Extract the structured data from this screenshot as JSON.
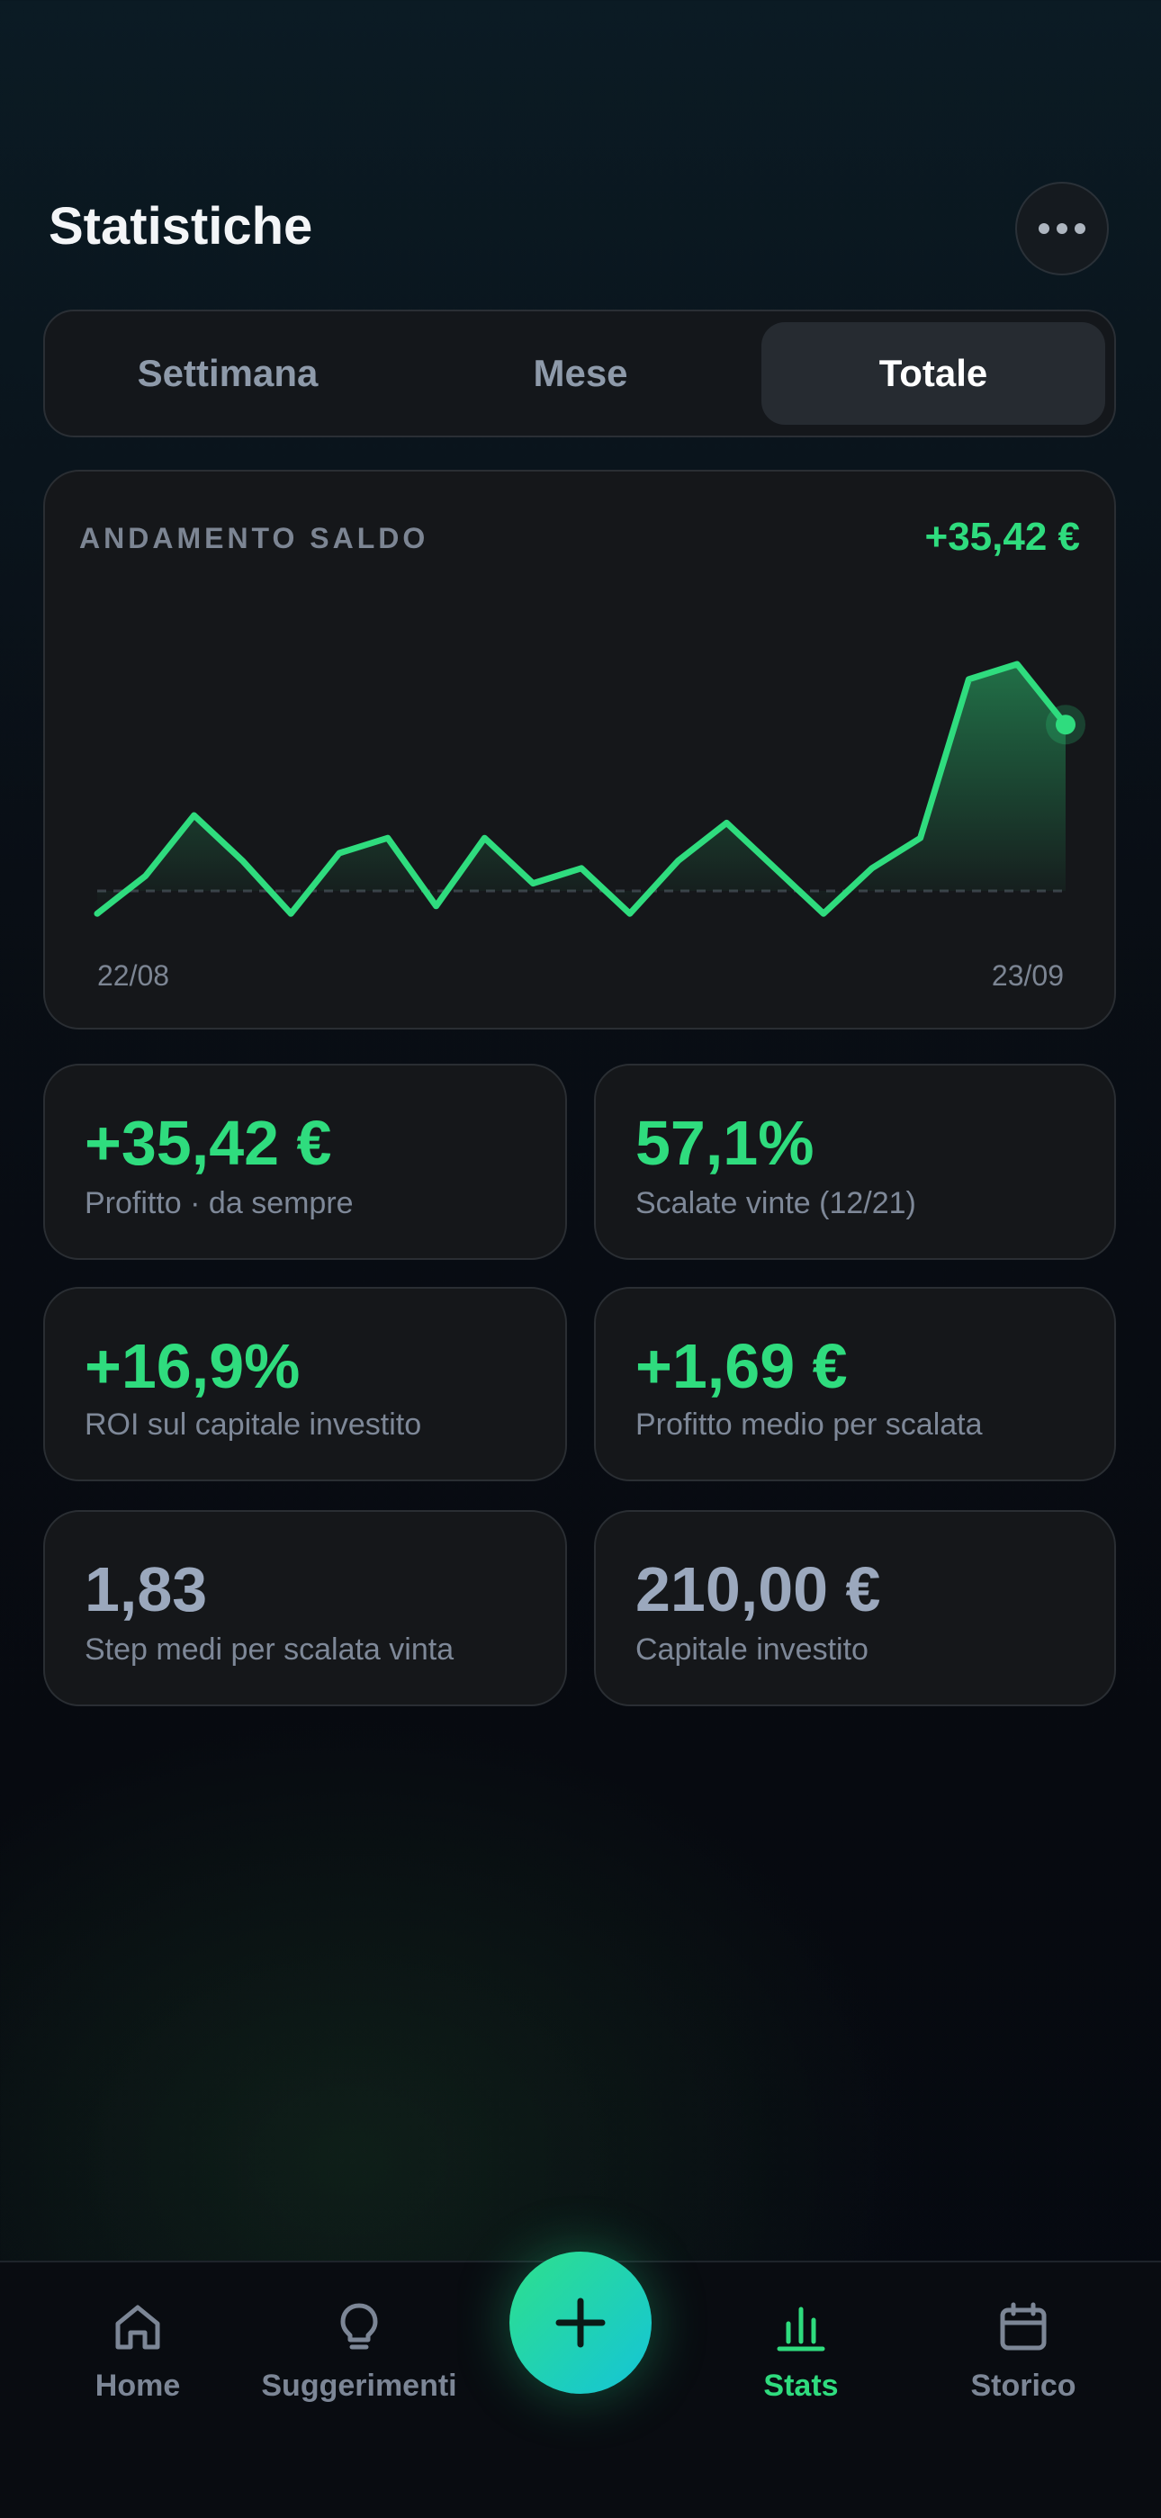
{
  "header": {
    "title": "Statistiche",
    "more_icon": "more-horizontal-icon"
  },
  "tabs": [
    {
      "label": "Settimana",
      "active": false
    },
    {
      "label": "Mese",
      "active": false
    },
    {
      "label": "Totale",
      "active": true
    }
  ],
  "balance_chart": {
    "label": "ANDAMENTO SALDO",
    "delta": "+35,42 €",
    "x_start": "22/08",
    "x_end": "23/09",
    "line_color": "#2fdc7e",
    "chart_data": {
      "type": "line",
      "x_range": [
        "22/08",
        "23/09"
      ],
      "baseline": 0,
      "series": [
        {
          "values": [
            -3,
            2,
            10,
            4,
            -3,
            5,
            7,
            -2,
            7,
            1,
            3,
            -3,
            4,
            9,
            3,
            -3,
            3,
            7,
            28,
            30,
            22
          ]
        }
      ],
      "grid": false,
      "legend": "none"
    }
  },
  "stats": [
    {
      "value": "+35,42 €",
      "label": "Profitto · da sempre",
      "tone": "green"
    },
    {
      "value": "57,1%",
      "label": "Scalate vinte (12/21)",
      "tone": "green"
    },
    {
      "value": "+16,9%",
      "label": "ROI sul capitale investito",
      "tone": "green"
    },
    {
      "value": "+1,69 €",
      "label": "Profitto medio per scalata",
      "tone": "green"
    },
    {
      "value": "1,83",
      "label": "Step medi per scalata vinta",
      "tone": "grey"
    },
    {
      "value": "210,00 €",
      "label": "Capitale investito",
      "tone": "grey"
    }
  ],
  "nav": {
    "items": [
      {
        "label": "Home",
        "icon": "home-icon",
        "active": false
      },
      {
        "label": "Suggerimenti",
        "icon": "lightbulb-icon",
        "active": false
      },
      {
        "label": "Stats",
        "icon": "bar-chart-icon",
        "active": true
      },
      {
        "label": "Storico",
        "icon": "calendar-icon",
        "active": false
      }
    ],
    "fab_icon": "plus-icon"
  },
  "colors": {
    "accent": "#2fdc7e",
    "fab_gradient_start": "#2ee08c",
    "fab_gradient_end": "#14c4d8",
    "card_bg": "#15171a",
    "muted_text": "#7e8898"
  }
}
